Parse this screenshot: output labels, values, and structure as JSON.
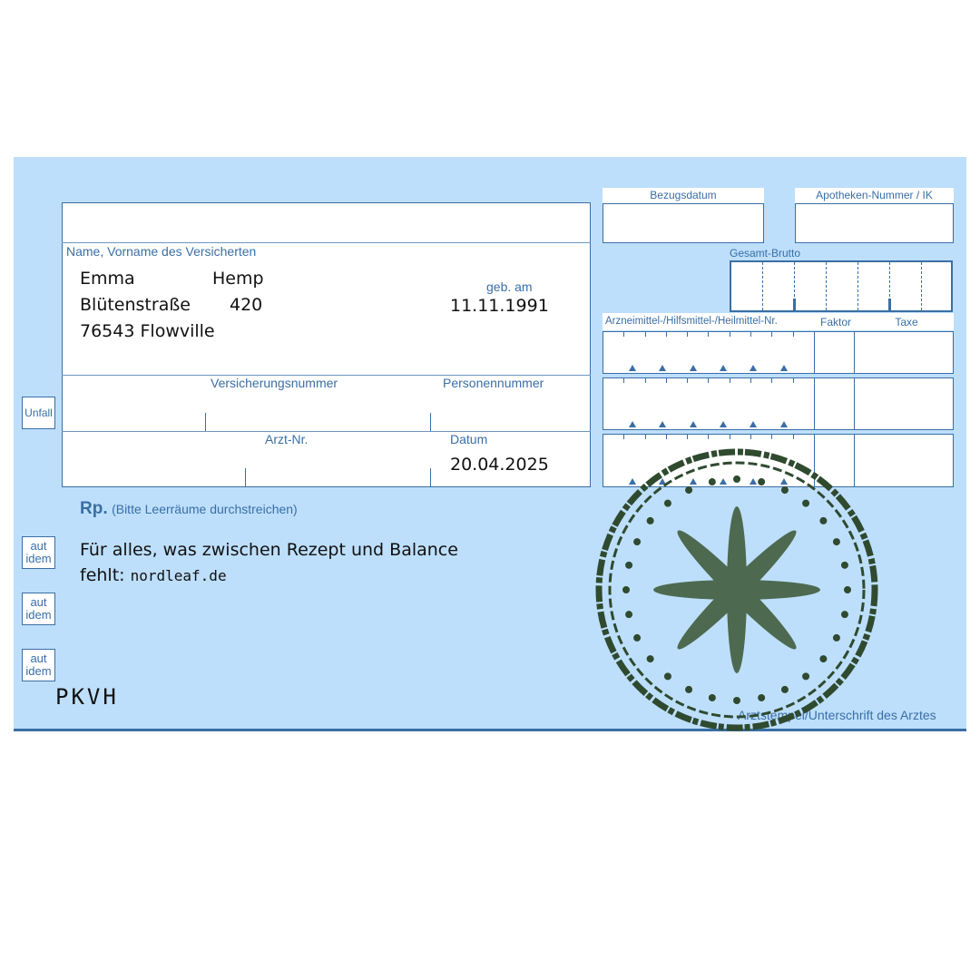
{
  "patient": {
    "label": "Name, Vorname des Versicherten",
    "first_name": "Emma",
    "last_name": "Hemp",
    "street": "Blütenstraße",
    "house_number": "420",
    "city_line": "76543 Flowville",
    "dob_label": "geb. am",
    "dob": "11.11.1991"
  },
  "ids": {
    "insurance_number_label": "Versicherungsnummer",
    "person_number_label": "Personennummer",
    "doctor_number_label": "Arzt-Nr.",
    "date_label": "Datum",
    "date": "20.04.2025"
  },
  "unfall_label": "Unfall",
  "pharmacy": {
    "bezugsdatum_label": "Bezugsdatum",
    "apotheken_label": "Apotheken-Nummer / IK",
    "gesamt_brutto_label": "Gesamt-Brutto",
    "medication_number_label": "Arzneimittel-/Hilfsmittel-/Heilmittel-Nr.",
    "faktor_label": "Faktor",
    "taxe_label": "Taxe"
  },
  "rp": {
    "label": "Rp.",
    "hint": "(Bitte Leerräume durchstreichen)"
  },
  "aut_idem": [
    {
      "line1": "aut",
      "line2": "idem"
    },
    {
      "line1": "aut",
      "line2": "idem"
    },
    {
      "line1": "aut",
      "line2": "idem"
    }
  ],
  "prescription": {
    "line1": "Für alles, was zwischen Rezept und Balance",
    "line2_prefix": "fehlt:",
    "line2_url": "nordleaf.de"
  },
  "signature_label": "Arztstempel/Unterschrift des Arztes",
  "footer_code": "PKVH",
  "colors": {
    "form_background": "#bddffc",
    "form_lines": "#3a6ea5",
    "stamp": "#2f4a2f",
    "stamp_flower": "#4d6a50"
  }
}
